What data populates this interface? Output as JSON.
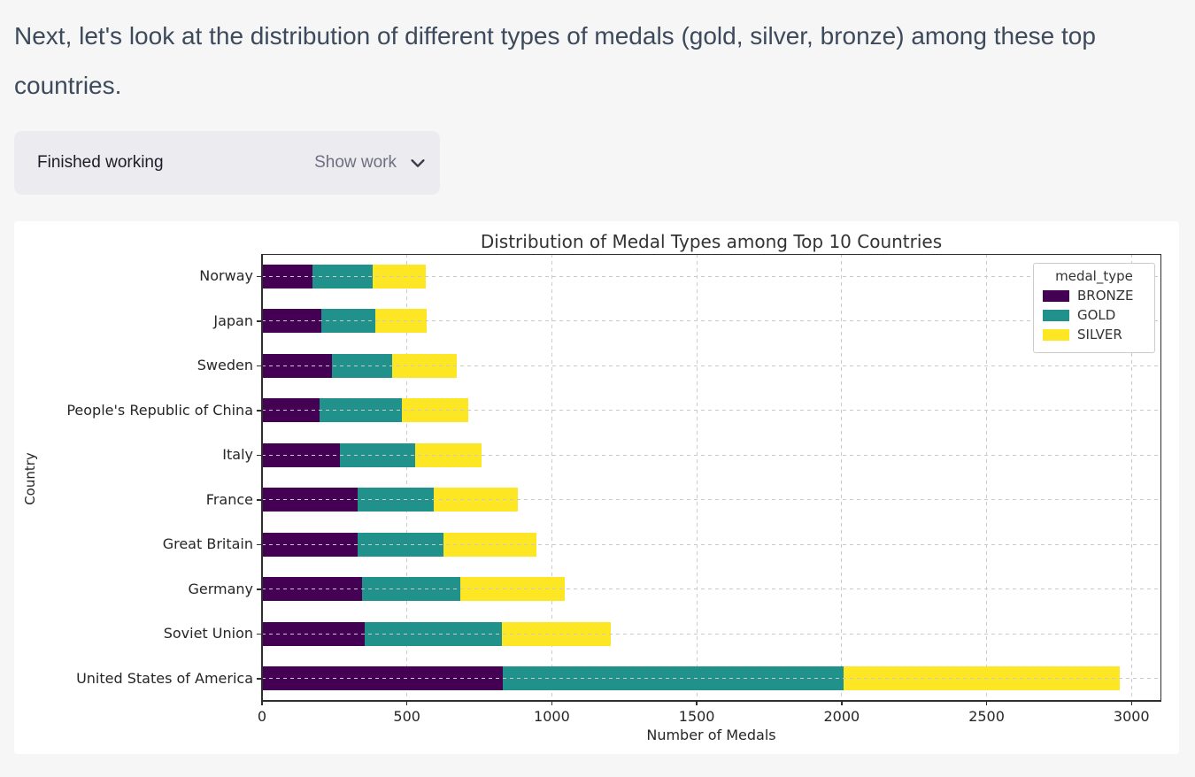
{
  "page": {
    "background": "#f6f6f7"
  },
  "message": {
    "text": "Next, let's look at the distribution of different types of medals (gold, silver, bronze) among these top countries."
  },
  "work_panel": {
    "status": "Finished working",
    "toggle_label": "Show work",
    "chevron_icon": "chevron-down",
    "background": "#ebebf0"
  },
  "chart_data": {
    "type": "stacked_bar_horizontal",
    "title": "Distribution of Medal Types among Top 10 Countries",
    "xlabel": "Number of Medals",
    "ylabel": "Country",
    "legend_title": "medal_type",
    "legend_position": "upper right",
    "grid": "dashed",
    "xticks": [
      0,
      500,
      1000,
      1500,
      2000,
      2500,
      3000
    ],
    "xlim": [
      0,
      3100
    ],
    "categories": [
      "Norway",
      "Japan",
      "Sweden",
      "People's Republic of China",
      "Italy",
      "France",
      "Great Britain",
      "Germany",
      "Soviet Union",
      "United States of America"
    ],
    "series": [
      {
        "name": "BRONZE",
        "color": "#440154",
        "values": [
          173,
          205,
          240,
          197,
          270,
          330,
          331,
          344,
          355,
          832
        ]
      },
      {
        "name": "GOLD",
        "color": "#21918c",
        "values": [
          209,
          186,
          208,
          285,
          257,
          261,
          296,
          340,
          473,
          1174
        ]
      },
      {
        "name": "SILVER",
        "color": "#fde725",
        "values": [
          183,
          178,
          224,
          231,
          230,
          291,
          320,
          360,
          376,
          954
        ]
      }
    ],
    "totals": [
      565,
      569,
      672,
      713,
      757,
      882,
      947,
      1044,
      1204,
      2960
    ]
  }
}
